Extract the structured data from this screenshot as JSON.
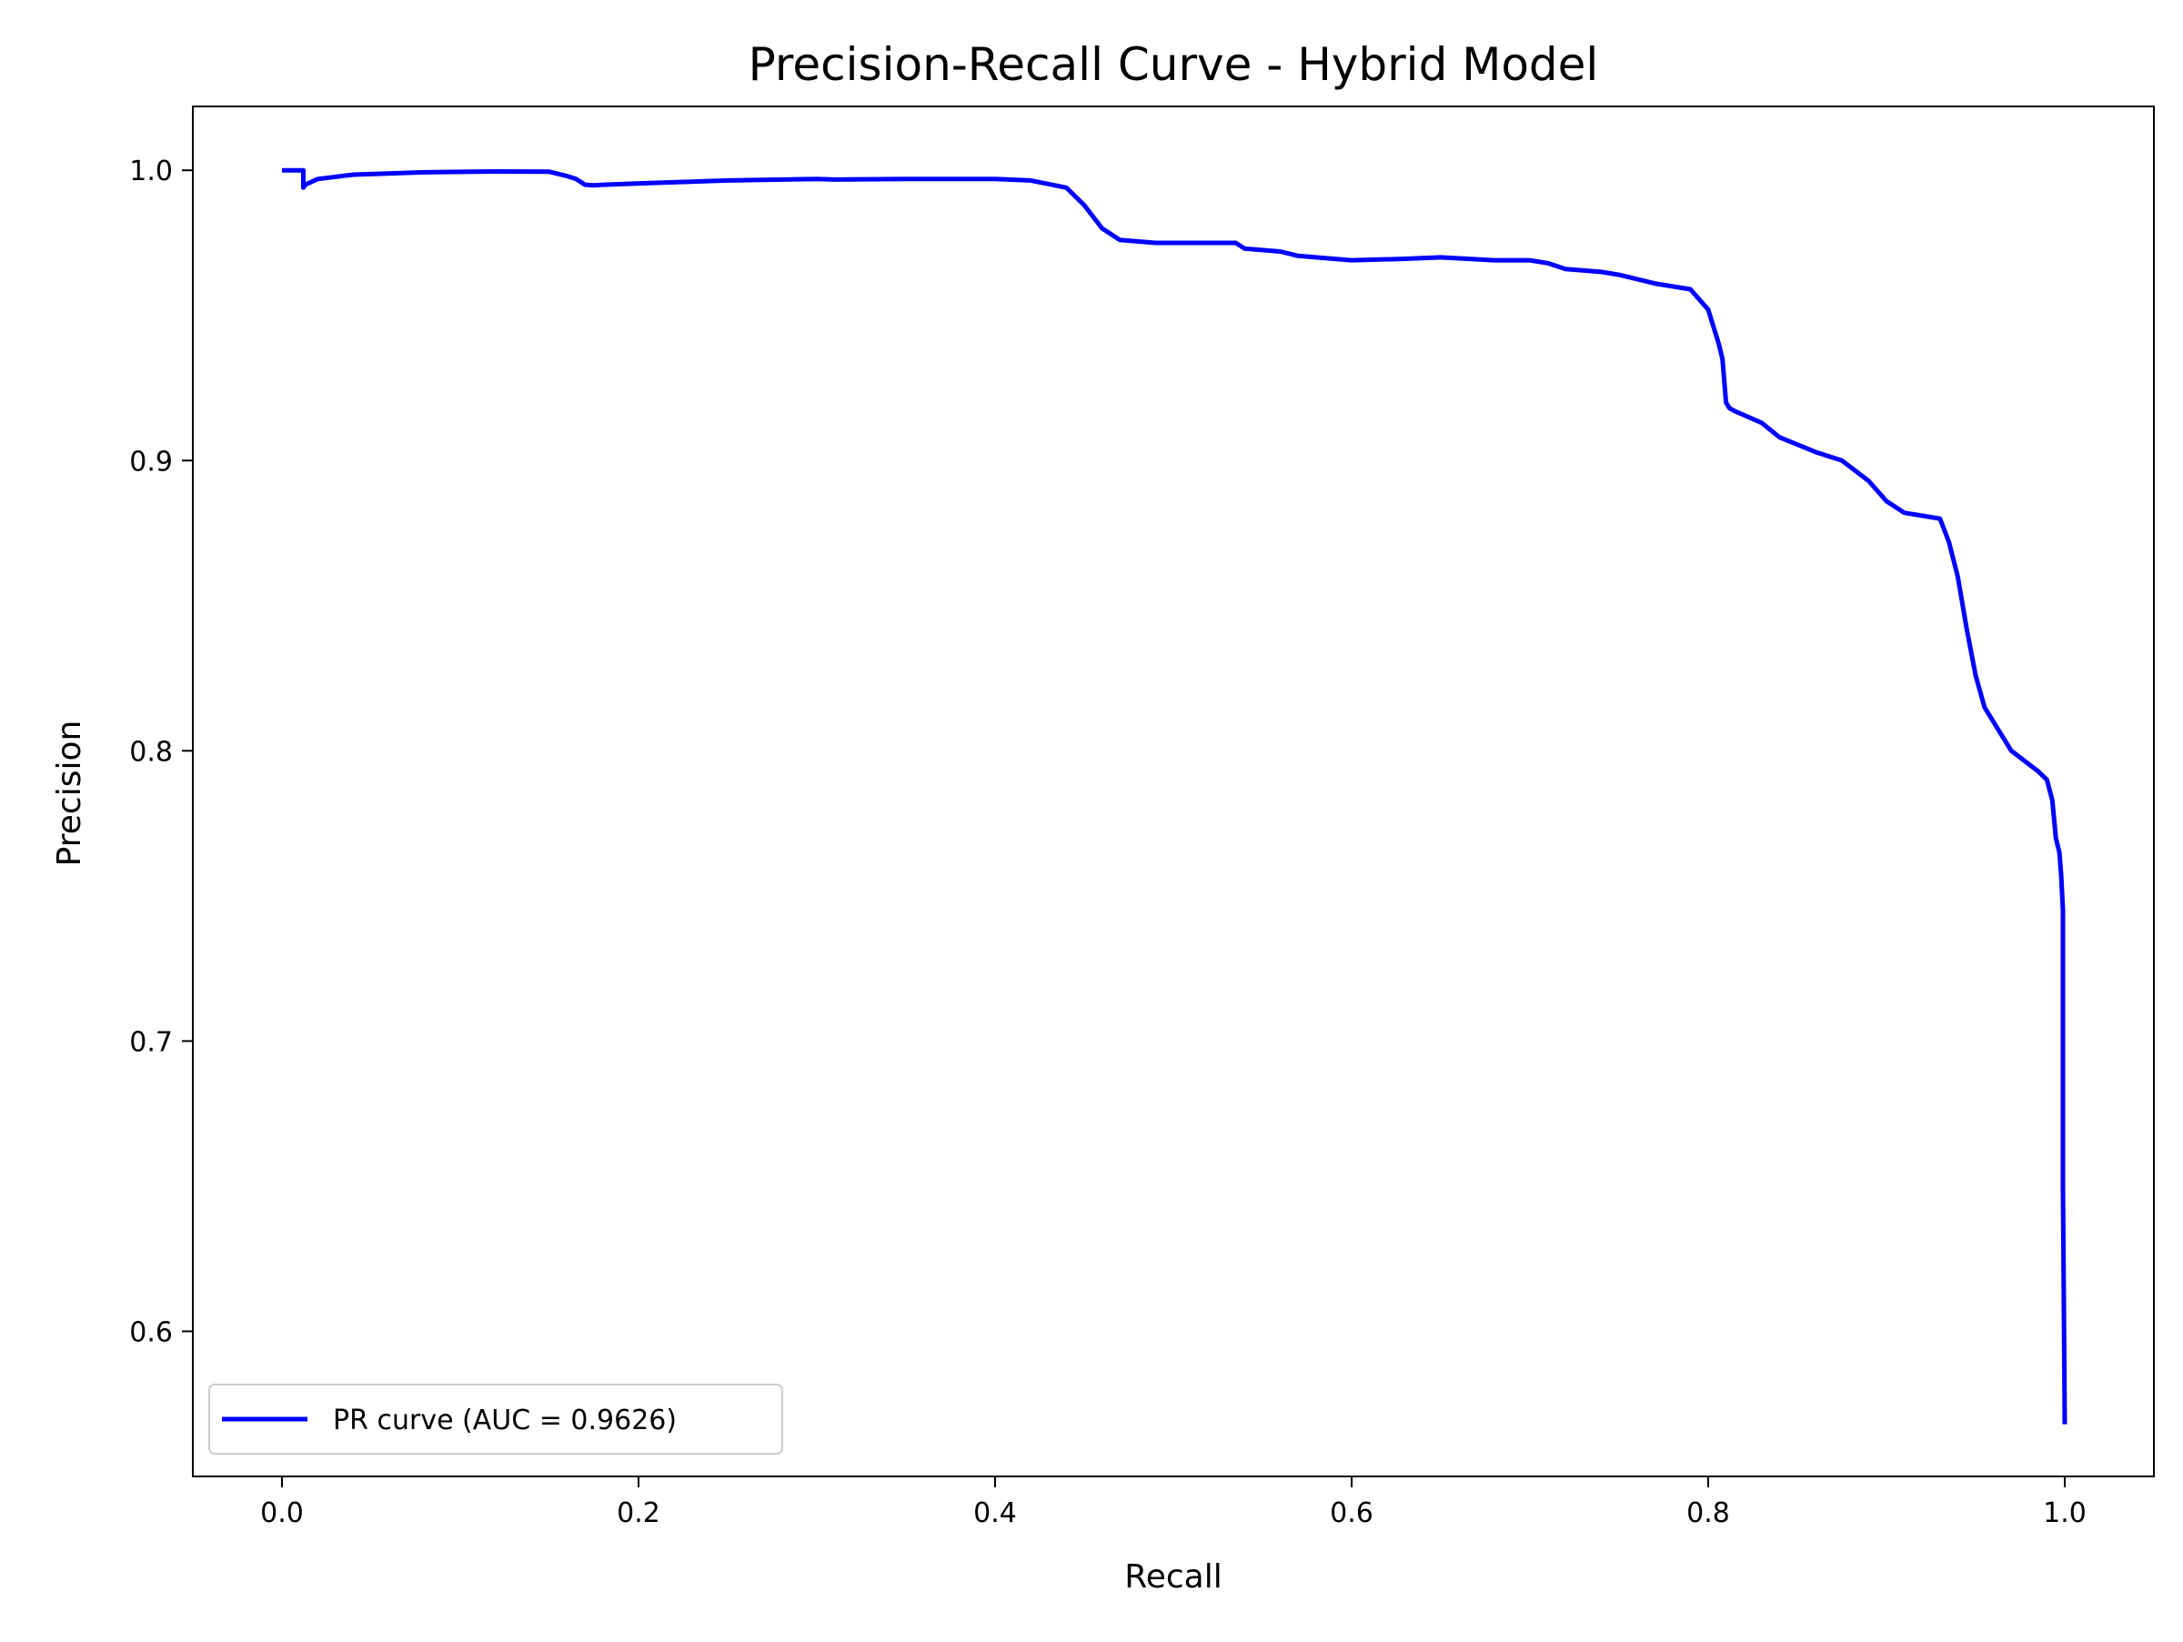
{
  "chart_data": {
    "type": "line",
    "title": "Precision-Recall Curve - Hybrid Model",
    "xlabel": "Recall",
    "ylabel": "Precision",
    "xlim": [
      -0.05,
      1.05
    ],
    "ylim": [
      0.55,
      1.022
    ],
    "xticks": [
      0.0,
      0.2,
      0.4,
      0.6,
      0.8,
      1.0
    ],
    "xtick_labels": [
      "0.0",
      "0.2",
      "0.4",
      "0.6",
      "0.8",
      "1.0"
    ],
    "yticks": [
      0.6,
      0.7,
      0.8,
      0.9,
      1.0
    ],
    "ytick_labels": [
      "0.6",
      "0.7",
      "0.8",
      "0.9",
      "1.0"
    ],
    "grid": false,
    "legend_position": "lower-left",
    "series": [
      {
        "name": "PR curve (AUC = 0.9626)",
        "color": "#0000ff",
        "x": [
          0.0,
          0.012,
          0.012,
          0.013,
          0.02,
          0.04,
          0.08,
          0.12,
          0.15,
          0.16,
          0.165,
          0.17,
          0.175,
          0.18,
          0.2,
          0.25,
          0.3,
          0.31,
          0.35,
          0.4,
          0.42,
          0.44,
          0.45,
          0.46,
          0.47,
          0.48,
          0.49,
          0.5,
          0.52,
          0.535,
          0.54,
          0.56,
          0.57,
          0.58,
          0.6,
          0.63,
          0.65,
          0.68,
          0.7,
          0.71,
          0.72,
          0.74,
          0.75,
          0.77,
          0.79,
          0.8,
          0.803,
          0.806,
          0.808,
          0.81,
          0.812,
          0.815,
          0.83,
          0.84,
          0.86,
          0.875,
          0.89,
          0.9,
          0.91,
          0.93,
          0.935,
          0.94,
          0.945,
          0.95,
          0.955,
          0.96,
          0.97,
          0.985,
          0.99,
          0.993,
          0.995,
          0.997,
          0.998,
          0.999,
          0.999,
          1.0
        ],
        "y": [
          1.0,
          1.0,
          0.994,
          0.995,
          0.997,
          0.9985,
          0.9993,
          0.9996,
          0.9995,
          0.998,
          0.997,
          0.995,
          0.9948,
          0.995,
          0.9955,
          0.9965,
          0.997,
          0.9968,
          0.997,
          0.997,
          0.9965,
          0.994,
          0.988,
          0.98,
          0.976,
          0.9755,
          0.975,
          0.975,
          0.975,
          0.975,
          0.973,
          0.972,
          0.9705,
          0.97,
          0.969,
          0.9695,
          0.97,
          0.969,
          0.969,
          0.968,
          0.966,
          0.965,
          0.964,
          0.961,
          0.959,
          0.952,
          0.946,
          0.94,
          0.935,
          0.92,
          0.918,
          0.917,
          0.913,
          0.908,
          0.903,
          0.9,
          0.893,
          0.886,
          0.882,
          0.88,
          0.872,
          0.86,
          0.842,
          0.826,
          0.815,
          0.81,
          0.8,
          0.793,
          0.79,
          0.783,
          0.77,
          0.765,
          0.757,
          0.745,
          0.65,
          0.568
        ]
      }
    ]
  }
}
